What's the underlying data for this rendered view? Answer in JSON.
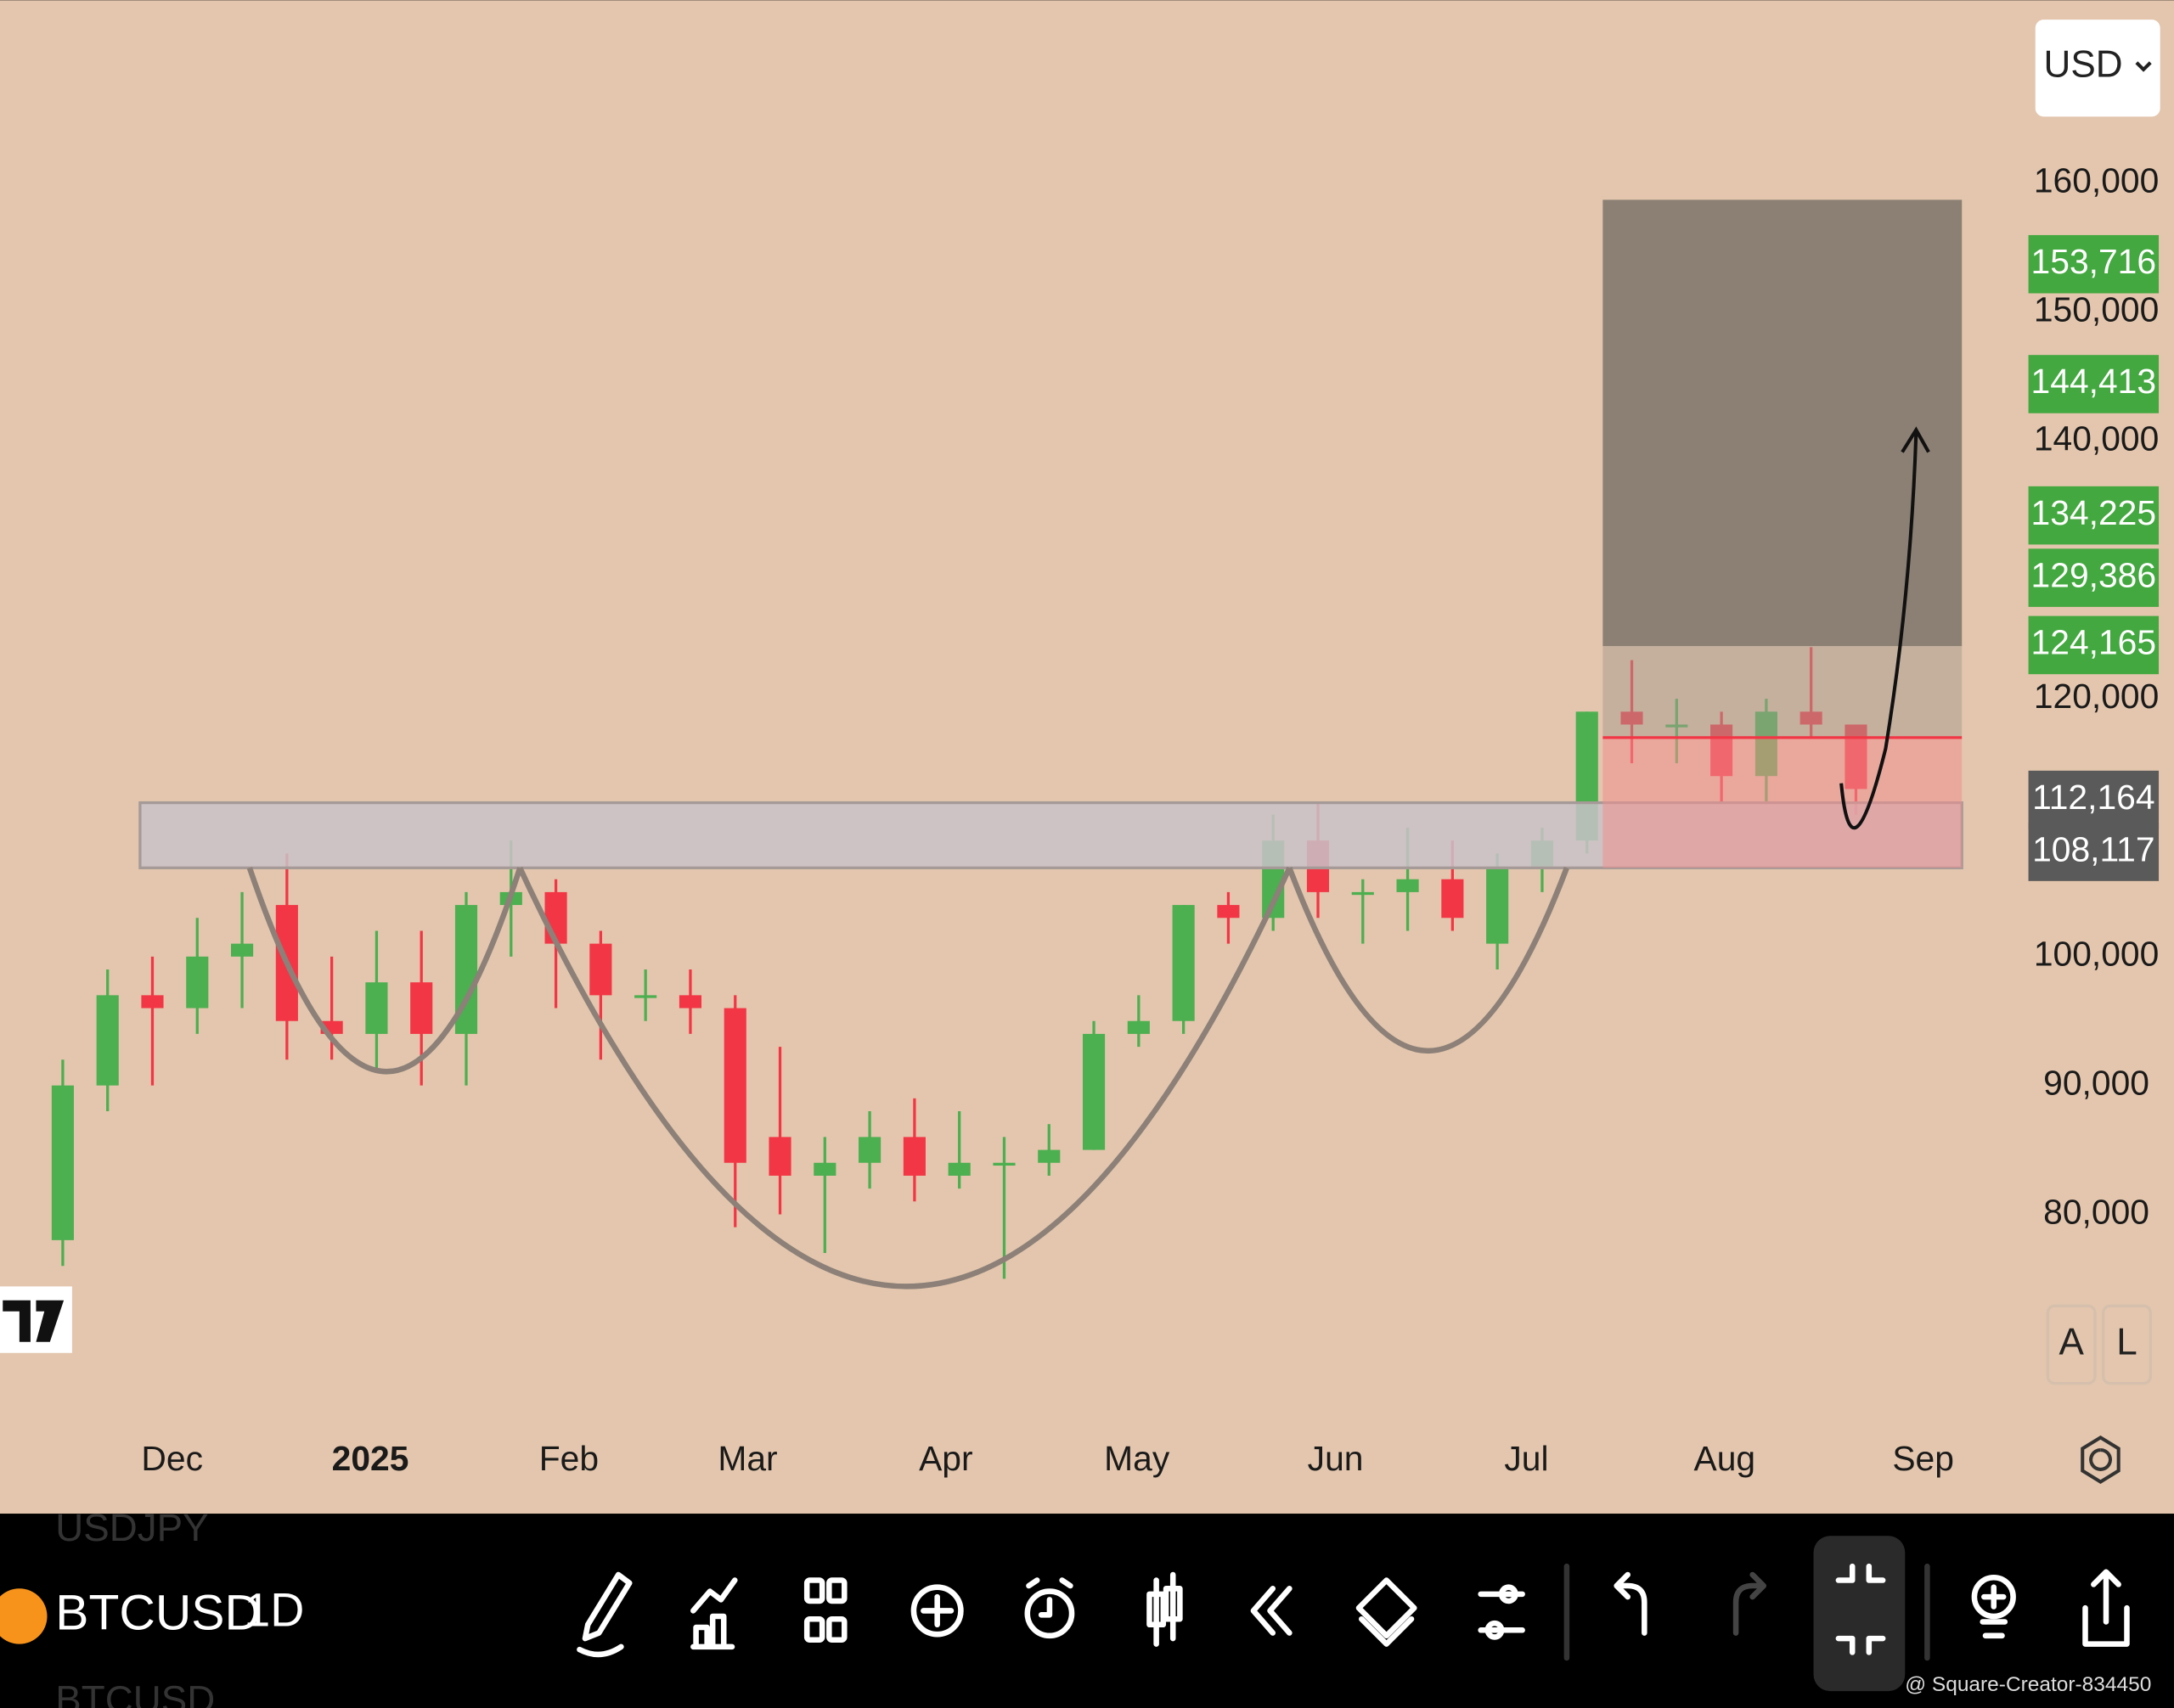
{
  "header": {
    "currency": "USD"
  },
  "chart_data": {
    "type": "candlestick",
    "categories": [
      null,
      null,
      null,
      null,
      null,
      null,
      null,
      null,
      null,
      null,
      null,
      null,
      null,
      null,
      null,
      null,
      null,
      null,
      null,
      null,
      null,
      null,
      null,
      null,
      null,
      null,
      null,
      null,
      null,
      null,
      null,
      null,
      null,
      null,
      null,
      null,
      null,
      null,
      null,
      null,
      null
    ],
    "open": [
      78000,
      90000,
      97000,
      96000,
      100000,
      104000,
      95000,
      94000,
      98000,
      94000,
      104000,
      105000,
      101000,
      97000,
      97000,
      96000,
      86000,
      83000,
      84000,
      86000,
      83000,
      84000,
      84000,
      85000,
      94000,
      95000,
      104000,
      103000,
      109000,
      105000,
      105000,
      106000,
      101000,
      107000,
      109000,
      119000,
      118000,
      118000,
      114000,
      119000,
      118000
    ],
    "high": [
      92000,
      99000,
      100000,
      103000,
      105000,
      108000,
      100000,
      102000,
      102000,
      105000,
      109000,
      106000,
      102000,
      99000,
      99000,
      97000,
      93000,
      86000,
      88000,
      89000,
      88000,
      86000,
      87000,
      95000,
      97000,
      104000,
      105000,
      111000,
      112000,
      106000,
      110000,
      109000,
      108000,
      110000,
      119000,
      123000,
      120000,
      119000,
      120000,
      124000,
      118000
    ],
    "low": [
      76000,
      88000,
      90000,
      94000,
      96000,
      92000,
      92000,
      91000,
      90000,
      90000,
      100000,
      96000,
      92000,
      95000,
      94000,
      79000,
      80000,
      77000,
      82000,
      81000,
      82000,
      75000,
      83000,
      85000,
      93000,
      94000,
      101000,
      102000,
      103000,
      101000,
      102000,
      102000,
      99000,
      105000,
      108000,
      115000,
      115000,
      112000,
      112000,
      117000,
      111000
    ],
    "close": [
      90000,
      97000,
      96000,
      100000,
      101000,
      95000,
      94000,
      98000,
      94000,
      104000,
      105000,
      101000,
      97000,
      97000,
      96000,
      84000,
      83000,
      84000,
      86000,
      83000,
      84000,
      84000,
      85000,
      94000,
      95000,
      104000,
      103000,
      109000,
      105000,
      105000,
      106000,
      103000,
      107000,
      109000,
      119000,
      118000,
      118000,
      114000,
      119000,
      118000,
      113000
    ],
    "up_color": "#4caf50",
    "down_color": "#f23645",
    "xlim": [
      -1.4,
      43.6
    ],
    "xticks": [
      {
        "value": 2.44,
        "label": "Dec"
      },
      {
        "value": 6.86,
        "label": "2025"
      },
      {
        "value": 11.29,
        "label": "Feb"
      },
      {
        "value": 15.28,
        "label": "Mar"
      },
      {
        "value": 19.7,
        "label": "Apr"
      },
      {
        "value": 23.96,
        "label": "May"
      },
      {
        "value": 28.39,
        "label": "Jun"
      },
      {
        "value": 32.65,
        "label": "Jul"
      },
      {
        "value": 37.07,
        "label": "Aug"
      },
      {
        "value": 41.5,
        "label": "Sep"
      }
    ],
    "ylim": [
      63441,
      174194
    ],
    "yticks": [
      {
        "value": 80000,
        "label": "80,000"
      },
      {
        "value": 90000,
        "label": "90,000"
      },
      {
        "value": 100000,
        "label": "100,000"
      },
      {
        "value": 120000,
        "label": "120,000"
      },
      {
        "value": 140000,
        "label": "140,000"
      },
      {
        "value": 150000,
        "label": "150,000"
      },
      {
        "value": 160000,
        "label": "160,000"
      }
    ],
    "price_tags": [
      {
        "value": 153716,
        "label": "153,716",
        "color": "#43a83f"
      },
      {
        "value": 144413,
        "label": "144,413",
        "color": "#43a83f"
      },
      {
        "value": 134225,
        "label": "134,225",
        "color": "#43a83f"
      },
      {
        "value": 129386,
        "label": "129,386",
        "color": "#43a83f"
      },
      {
        "value": 124165,
        "label": "124,165",
        "color": "#43a83f"
      },
      {
        "value": 112164,
        "label": "112,164",
        "color": "#5a5a5a"
      },
      {
        "value": 108117,
        "label": "108,117",
        "color": "#5a5a5a"
      }
    ]
  },
  "scale_buttons": [
    "A",
    "L"
  ],
  "toolbar": {
    "symbol": "BTCUSD",
    "interval": "1D",
    "watchlist_prev": "USDJPY",
    "watchlist_next": "BTCUSD"
  },
  "watermark": "@ Square-Creator-834450"
}
